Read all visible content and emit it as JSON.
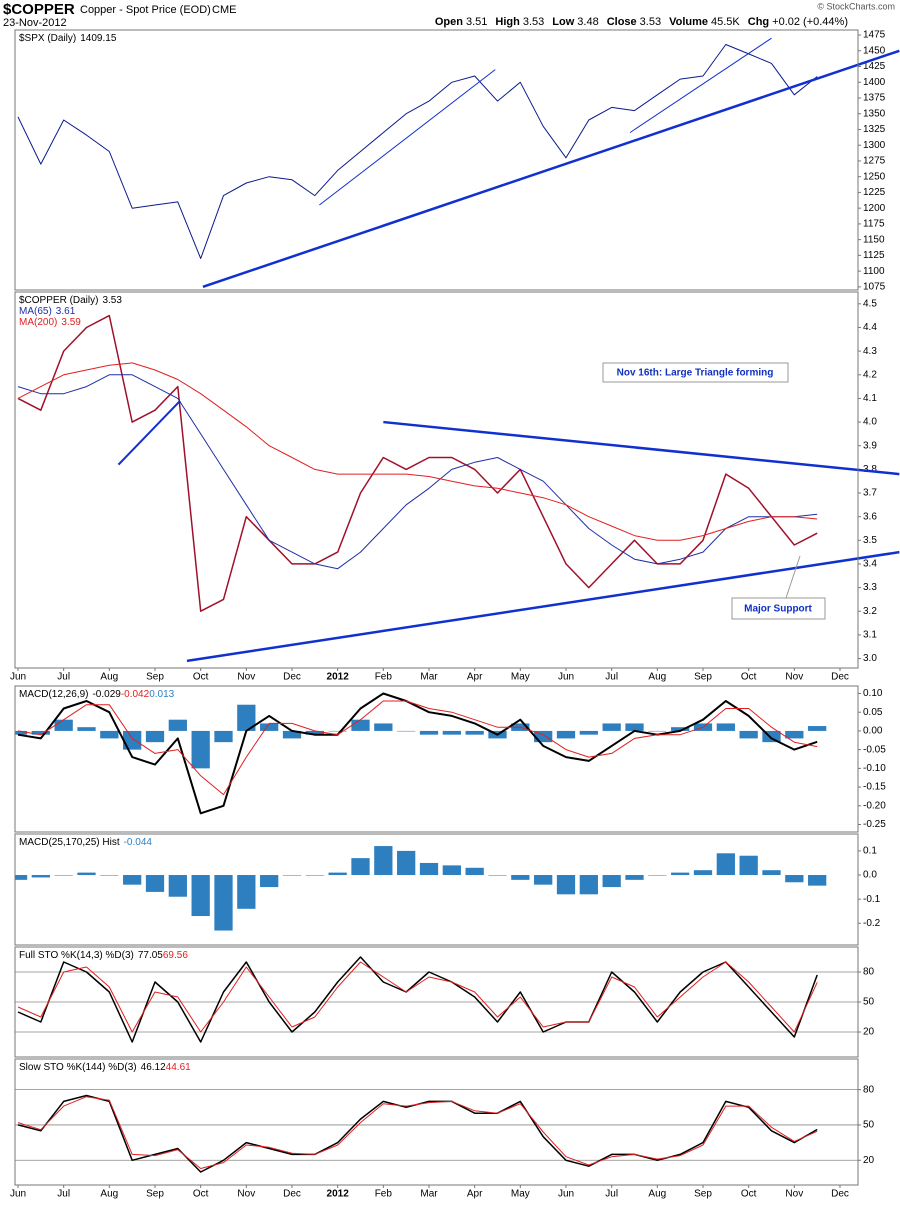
{
  "header": {
    "symbol": "$COPPER",
    "name": "Copper - Spot Price (EOD)",
    "exchange": "CME",
    "date": "23-Nov-2012",
    "source": "© StockCharts.com",
    "quote": [
      {
        "label": "Open",
        "value": 3.51
      },
      {
        "label": "High",
        "value": 3.53
      },
      {
        "label": "Low",
        "value": 3.48
      },
      {
        "label": "Close",
        "value": 3.53
      },
      {
        "label": "Volume",
        "value": "45.5K"
      },
      {
        "label": "Chg",
        "value": "+0.02 (+0.44%)"
      }
    ]
  },
  "x_axis": {
    "categories": [
      "Jun",
      null,
      "Jul",
      null,
      "Aug",
      null,
      "Sep",
      null,
      "Oct",
      null,
      "Nov",
      null,
      "Dec",
      null,
      "2012",
      null,
      "Feb",
      null,
      "Mar",
      null,
      "Apr",
      null,
      "May",
      null,
      "Jun",
      null,
      "Jul",
      null,
      "Aug",
      null,
      "Sep",
      null,
      "Oct",
      null,
      "Nov",
      null,
      "Dec"
    ]
  },
  "chart_data": [
    {
      "type": "line",
      "ylim": [
        1070,
        1483
      ],
      "yticks": [
        1075,
        1100,
        1125,
        1150,
        1175,
        1200,
        1225,
        1250,
        1275,
        1300,
        1325,
        1350,
        1375,
        1400,
        1425,
        1450,
        1475
      ],
      "series": [
        {
          "name": "$SPX (Daily)",
          "last": 1409.15,
          "color": "#0b1a8c",
          "values": [
            1345,
            1270,
            1340,
            1316,
            1290,
            1200,
            1205,
            1210,
            1120,
            1220,
            1240,
            1250,
            1245,
            1220,
            1260,
            1290,
            1320,
            1350,
            1370,
            1400,
            1410,
            1370,
            1400,
            1330,
            1280,
            1340,
            1360,
            1355,
            1380,
            1405,
            1410,
            1460,
            1445,
            1430,
            1380,
            1409.15,
            null
          ]
        }
      ],
      "trendlines": [
        {
          "x": [
            8.1,
            38.6
          ],
          "y": [
            1075,
            1450
          ],
          "color": "#1030d0",
          "width": 2.5
        },
        {
          "x": [
            13.2,
            20.9
          ],
          "y": [
            1205,
            1420
          ],
          "color": "#1030d0",
          "width": 1
        },
        {
          "x": [
            26.8,
            33
          ],
          "y": [
            1320,
            1470
          ],
          "color": "#1030d0",
          "width": 1
        }
      ]
    },
    {
      "type": "line",
      "ylim": [
        2.96,
        4.55
      ],
      "yticks": [
        {
          "value": 3,
          "label": "3.0"
        },
        3.1,
        3.2,
        3.3,
        3.4,
        3.5,
        3.6,
        3.7,
        3.8,
        3.9,
        {
          "value": 4,
          "label": "4.0"
        },
        4.1,
        4.2,
        4.3,
        4.4,
        4.5
      ],
      "x_labels": true,
      "series": [
        {
          "name": "$COPPER (Daily)",
          "last": 3.53,
          "color": "#a0102a",
          "width": 1.5,
          "values": [
            4.1,
            4.05,
            4.3,
            4.4,
            4.45,
            4.0,
            4.05,
            4.15,
            3.2,
            3.25,
            3.6,
            3.5,
            3.4,
            3.4,
            3.45,
            3.7,
            3.85,
            3.8,
            3.85,
            3.85,
            3.8,
            3.7,
            3.8,
            3.6,
            3.4,
            3.3,
            3.4,
            3.5,
            3.4,
            3.4,
            3.5,
            3.78,
            3.72,
            3.6,
            3.48,
            3.53,
            null
          ]
        },
        {
          "name": "MA(65)",
          "last": 3.61,
          "color": "#1f2fa8",
          "width": 1,
          "values": [
            4.15,
            4.12,
            4.12,
            4.15,
            4.2,
            4.2,
            4.15,
            4.1,
            3.95,
            3.8,
            3.65,
            3.5,
            3.45,
            3.4,
            3.38,
            3.45,
            3.55,
            3.65,
            3.72,
            3.8,
            3.83,
            3.85,
            3.8,
            3.75,
            3.65,
            3.55,
            3.48,
            3.42,
            3.4,
            3.42,
            3.45,
            3.55,
            3.6,
            3.6,
            3.6,
            3.61,
            null
          ]
        },
        {
          "name": "MA(200)",
          "last": 3.59,
          "color": "#e02020",
          "width": 1,
          "values": [
            4.1,
            4.15,
            4.2,
            4.22,
            4.24,
            4.25,
            4.22,
            4.18,
            4.12,
            4.05,
            3.98,
            3.9,
            3.85,
            3.8,
            3.78,
            3.78,
            3.78,
            3.78,
            3.77,
            3.75,
            3.73,
            3.72,
            3.7,
            3.68,
            3.65,
            3.6,
            3.56,
            3.52,
            3.5,
            3.5,
            3.52,
            3.55,
            3.58,
            3.6,
            3.6,
            3.59,
            null
          ]
        }
      ],
      "trendlines": [
        {
          "x": [
            16.0,
            38.6
          ],
          "y": [
            4.0,
            3.78
          ],
          "color": "#1030d0",
          "width": 2.5
        },
        {
          "x": [
            7.4,
            38.6
          ],
          "y": [
            2.99,
            3.45
          ],
          "color": "#1030d0",
          "width": 2.5
        },
        {
          "x": [
            4.4,
            7.1
          ],
          "y": [
            3.82,
            4.09
          ],
          "color": "#1030d0",
          "width": 2
        }
      ],
      "annotations": [
        "Nov 16th: Large Triangle forming",
        "Major Support"
      ]
    },
    {
      "type": "line",
      "title": "MACD(12,26,9)",
      "ylim": [
        -0.27,
        0.12
      ],
      "yticks": [
        {
          "value": 0.1,
          "label": "0.10"
        },
        0.05,
        {
          "value": 0,
          "label": "0.00"
        },
        -0.05,
        {
          "value": -0.1,
          "label": "-0.10"
        },
        -0.15,
        {
          "value": -0.2,
          "label": "-0.20"
        },
        -0.25
      ],
      "series": [
        {
          "style": "line",
          "last": -0.029,
          "color": "#000000",
          "width": 2,
          "values": [
            -0.01,
            -0.02,
            0.06,
            0.08,
            0.05,
            -0.07,
            -0.09,
            -0.02,
            -0.22,
            -0.2,
            0.0,
            0.04,
            0.0,
            -0.01,
            -0.01,
            0.06,
            0.1,
            0.08,
            0.05,
            0.04,
            0.02,
            -0.01,
            0.03,
            -0.04,
            -0.07,
            -0.08,
            -0.04,
            0.0,
            -0.01,
            0.0,
            0.03,
            0.08,
            0.04,
            -0.02,
            -0.05,
            -0.029,
            null
          ]
        },
        {
          "style": "line",
          "last": -0.042,
          "color": "#e02020",
          "width": 1,
          "values": [
            0.0,
            -0.01,
            0.03,
            0.07,
            0.07,
            -0.02,
            -0.06,
            -0.05,
            -0.12,
            -0.17,
            -0.07,
            0.02,
            0.02,
            0.0,
            -0.01,
            0.03,
            0.08,
            0.08,
            0.06,
            0.05,
            0.03,
            0.01,
            0.01,
            -0.01,
            -0.05,
            -0.07,
            -0.06,
            -0.02,
            -0.01,
            -0.01,
            0.01,
            0.06,
            0.06,
            0.01,
            -0.03,
            -0.042,
            null
          ]
        },
        {
          "style": "bar",
          "last": 0.013,
          "color": "#2e7fc0",
          "values": [
            -0.01,
            -0.01,
            0.03,
            0.01,
            -0.02,
            -0.05,
            -0.03,
            0.03,
            -0.1,
            -0.03,
            0.07,
            0.02,
            -0.02,
            -0.01,
            0,
            0.03,
            0.02,
            0,
            -0.01,
            -0.01,
            -0.01,
            -0.02,
            0.02,
            -0.03,
            -0.02,
            -0.01,
            0.02,
            0.02,
            0,
            0.01,
            0.02,
            0.02,
            -0.02,
            -0.03,
            -0.02,
            0.013,
            null
          ]
        }
      ]
    },
    {
      "type": "line",
      "title": "MACD(25,170,25) Hist",
      "ylim": [
        -0.29,
        0.17
      ],
      "yticks": [
        0.1,
        {
          "value": 0,
          "label": "0.0"
        },
        -0.1,
        -0.2
      ],
      "series": [
        {
          "style": "bar",
          "last": -0.044,
          "color": "#2e7fc0",
          "values": [
            -0.02,
            -0.01,
            0.0,
            0.01,
            0.0,
            -0.04,
            -0.07,
            -0.09,
            -0.17,
            -0.23,
            -0.14,
            -0.05,
            0.0,
            0.0,
            0.01,
            0.07,
            0.12,
            0.1,
            0.05,
            0.04,
            0.03,
            0.0,
            -0.02,
            -0.04,
            -0.08,
            -0.08,
            -0.05,
            -0.02,
            0.0,
            0.01,
            0.02,
            0.09,
            0.08,
            0.02,
            -0.03,
            -0.044,
            null
          ]
        }
      ]
    },
    {
      "type": "line",
      "title": "Full STO %K(14,3) %D(3)",
      "ylim": [
        -5,
        105
      ],
      "yticks": [
        20,
        50,
        80
      ],
      "grid": true,
      "series": [
        {
          "style": "line",
          "last": 77.05,
          "color": "#000000",
          "width": 1.5,
          "values": [
            40,
            30,
            90,
            80,
            60,
            10,
            70,
            50,
            10,
            60,
            90,
            50,
            20,
            40,
            70,
            95,
            70,
            60,
            80,
            70,
            55,
            30,
            60,
            20,
            30,
            30,
            80,
            60,
            30,
            60,
            80,
            90,
            65,
            40,
            15,
            77.05,
            null
          ]
        },
        {
          "style": "line",
          "last": 69.56,
          "color": "#e02020",
          "width": 1,
          "values": [
            45,
            35,
            80,
            85,
            65,
            20,
            60,
            55,
            20,
            50,
            85,
            55,
            25,
            35,
            65,
            90,
            75,
            60,
            75,
            70,
            60,
            35,
            55,
            25,
            30,
            30,
            75,
            65,
            35,
            55,
            75,
            90,
            70,
            45,
            20,
            69.56,
            null
          ]
        }
      ]
    },
    {
      "type": "line",
      "title": "Slow STO %K(144) %D(3)",
      "ylim": [
        -1,
        106
      ],
      "yticks": [
        20,
        50,
        80
      ],
      "grid": true,
      "x_labels": true,
      "series": [
        {
          "style": "line",
          "last": 46.12,
          "color": "#000000",
          "width": 1.5,
          "values": [
            50,
            45,
            70,
            75,
            70,
            20,
            25,
            30,
            10,
            20,
            35,
            30,
            25,
            25,
            35,
            55,
            70,
            65,
            70,
            70,
            60,
            60,
            70,
            40,
            20,
            15,
            25,
            25,
            20,
            25,
            35,
            70,
            65,
            45,
            35,
            46.12,
            null
          ]
        },
        {
          "style": "line",
          "last": 44.61,
          "color": "#e02020",
          "width": 1,
          "values": [
            52,
            46,
            66,
            74,
            71,
            25,
            24,
            29,
            13,
            18,
            33,
            31,
            26,
            25,
            33,
            52,
            68,
            66,
            69,
            70,
            62,
            60,
            68,
            44,
            23,
            16,
            23,
            25,
            21,
            24,
            33,
            66,
            66,
            48,
            36,
            44.61,
            null
          ]
        }
      ]
    }
  ]
}
